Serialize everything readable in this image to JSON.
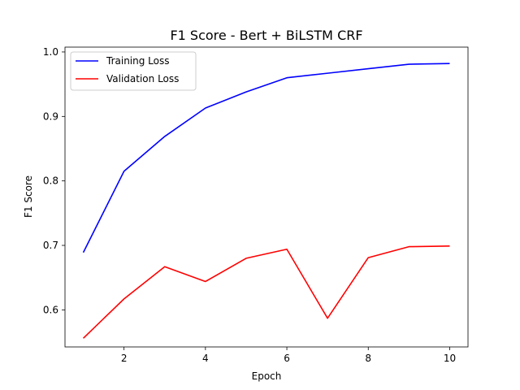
{
  "chart_data": {
    "type": "line",
    "title": "F1 Score - Bert + BiLSTM CRF",
    "xlabel": "Epoch",
    "ylabel": "F1 Score",
    "x": [
      1,
      2,
      3,
      4,
      5,
      6,
      7,
      8,
      9,
      10
    ],
    "xlim": [
      0.55,
      10.45
    ],
    "ylim": [
      0.5425,
      1.0075
    ],
    "xticks": [
      2,
      4,
      6,
      8,
      10
    ],
    "yticks": [
      0.6,
      0.7,
      0.8,
      0.9,
      1.0
    ],
    "xtick_labels": [
      "2",
      "4",
      "6",
      "8",
      "10"
    ],
    "ytick_labels": [
      "0.6",
      "0.7",
      "0.8",
      "0.9",
      "1.0"
    ],
    "grid": false,
    "legend_position": "top-left",
    "series": [
      {
        "name": "Training Loss",
        "color": "#0000ff",
        "values": [
          0.689,
          0.815,
          0.869,
          0.913,
          0.938,
          0.96,
          0.967,
          0.974,
          0.981,
          0.982
        ]
      },
      {
        "name": "Validation Loss",
        "color": "#ff0000",
        "values": [
          0.556,
          0.617,
          0.667,
          0.644,
          0.68,
          0.694,
          0.587,
          0.681,
          0.698,
          0.699
        ]
      }
    ]
  }
}
